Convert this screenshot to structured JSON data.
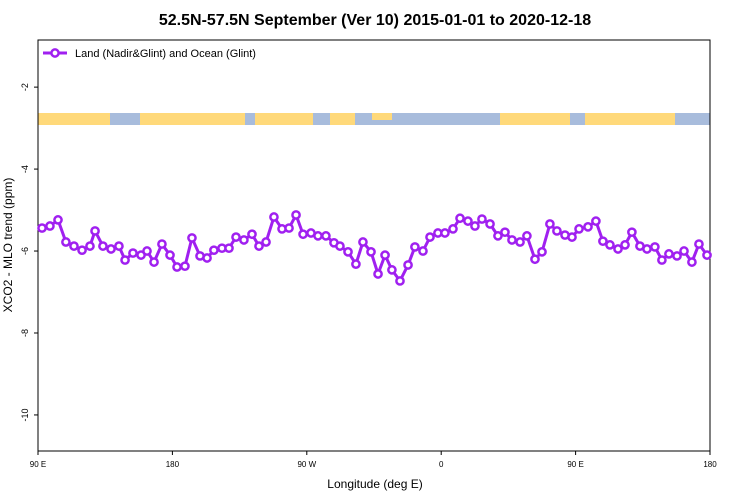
{
  "chart_data": {
    "type": "line",
    "title": "52.5N-57.5N September (Ver 10)   2015-01-01 to 2020-12-18",
    "x_label": "Longitude (deg E)",
    "y_label": "XCO2 - MLO trend (ppm)",
    "legend": "top-left",
    "xlim": [
      90,
      540
    ],
    "ylim": [
      -10.88,
      -0.85
    ],
    "xticks": [
      {
        "value": 90,
        "label": "90 E"
      },
      180,
      {
        "value": 270,
        "label": "90 W"
      },
      {
        "value": 360,
        "label": "0"
      },
      {
        "value": 450,
        "label": "90 E"
      },
      {
        "value": 540,
        "label": "180"
      }
    ],
    "yticks": [
      -2,
      -4,
      -6,
      -8,
      -10
    ],
    "x": [
      92.7,
      98.0,
      103.4,
      108.7,
      114.1,
      119.5,
      124.8,
      128.2,
      133.5,
      138.9,
      144.2,
      148.3,
      153.6,
      159.0,
      163.0,
      167.7,
      173.0,
      178.4,
      183.1,
      188.4,
      193.1,
      198.5,
      203.2,
      207.8,
      213.2,
      217.9,
      222.6,
      227.9,
      233.3,
      238.0,
      242.7,
      248.0,
      253.4,
      258.1,
      262.8,
      267.5,
      272.8,
      277.5,
      282.8,
      288.2,
      292.2,
      297.6,
      302.9,
      307.6,
      313.0,
      317.7,
      322.4,
      327.0,
      332.4,
      337.8,
      342.4,
      347.8,
      352.5,
      357.8,
      362.5,
      367.9,
      372.6,
      377.9,
      382.6,
      387.3,
      392.7,
      398.0,
      402.7,
      407.4,
      412.8,
      417.4,
      422.8,
      427.5,
      432.8,
      437.5,
      442.9,
      447.6,
      452.3,
      458.3,
      463.6,
      468.3,
      473.0,
      478.4,
      483.1,
      487.7,
      493.1,
      497.8,
      503.1,
      507.8,
      512.5,
      517.9,
      522.6,
      527.9,
      532.6,
      538.0
    ],
    "series": [
      {
        "name": "Land (Nadir&Glint) and Ocean (Glint)",
        "color": "#a020f0",
        "values": [
          -5.44,
          -5.39,
          -5.24,
          -5.78,
          -5.88,
          -5.98,
          -5.88,
          -5.51,
          -5.88,
          -5.95,
          -5.88,
          -6.22,
          -6.05,
          -6.1,
          -6.0,
          -6.27,
          -5.83,
          -6.1,
          -6.39,
          -6.37,
          -5.68,
          -6.12,
          -6.17,
          -5.98,
          -5.93,
          -5.93,
          -5.66,
          -5.73,
          -5.59,
          -5.88,
          -5.78,
          -5.17,
          -5.46,
          -5.44,
          -5.12,
          -5.59,
          -5.56,
          -5.63,
          -5.63,
          -5.8,
          -5.88,
          -6.02,
          -6.32,
          -5.78,
          -6.02,
          -6.56,
          -6.1,
          -6.46,
          -6.73,
          -6.34,
          -5.9,
          -6.0,
          -5.66,
          -5.56,
          -5.56,
          -5.46,
          -5.2,
          -5.27,
          -5.39,
          -5.22,
          -5.34,
          -5.63,
          -5.54,
          -5.73,
          -5.78,
          -5.63,
          -6.2,
          -6.02,
          -5.34,
          -5.51,
          -5.61,
          -5.66,
          -5.46,
          -5.41,
          -5.27,
          -5.76,
          -5.85,
          -5.95,
          -5.85,
          -5.54,
          -5.88,
          -5.95,
          -5.9,
          -6.22,
          -6.07,
          -6.12,
          -6.0,
          -6.27,
          -5.83,
          -6.1
        ]
      }
    ]
  }
}
